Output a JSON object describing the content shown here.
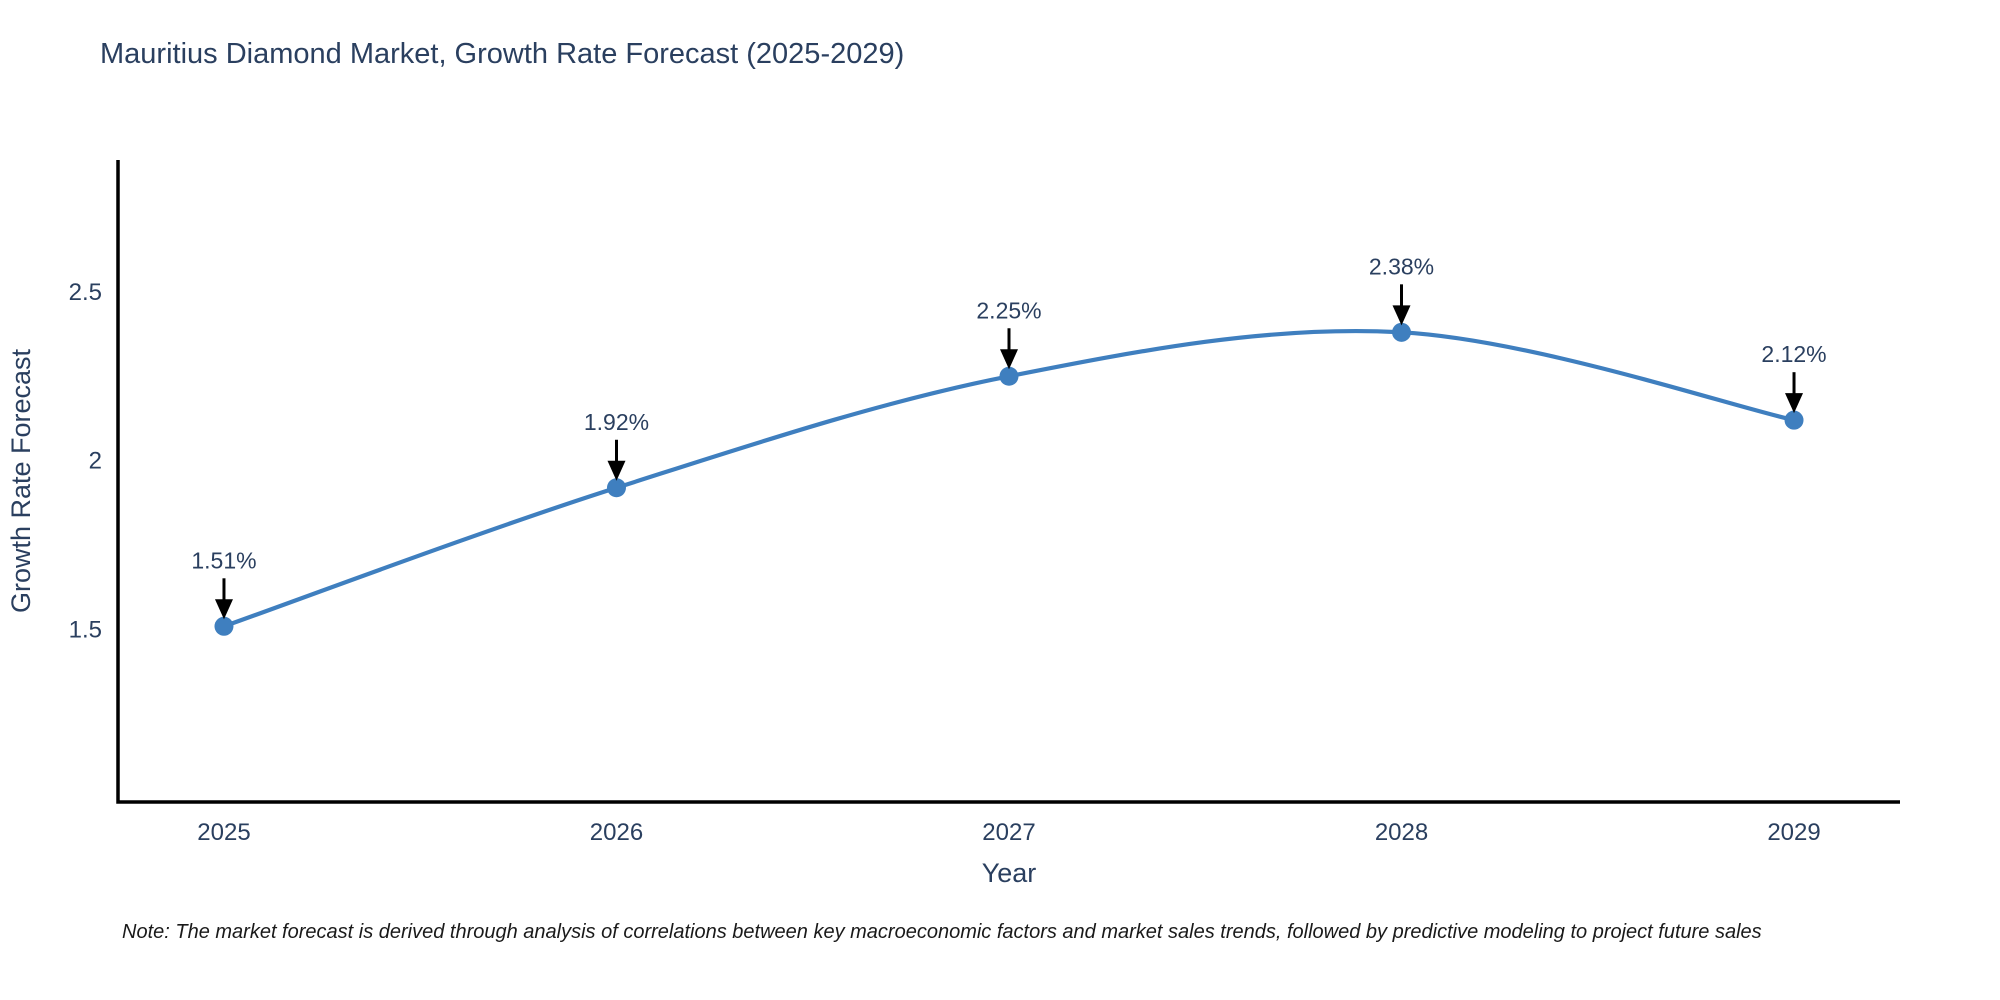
{
  "page": {
    "title": "Mauritius Diamond Market, Growth Rate Forecast (2025-2029)",
    "note": "Note: The market forecast is derived through analysis of correlations between key macroeconomic factors and market sales trends, followed by predictive modeling to project future sales"
  },
  "chart_data": {
    "type": "line",
    "title": "Mauritius Diamond Market, Growth Rate Forecast (2025-2029)",
    "xlabel": "Year",
    "ylabel": "Growth Rate Forecast",
    "x": [
      2025,
      2026,
      2027,
      2028,
      2029
    ],
    "values": [
      1.51,
      1.92,
      2.25,
      2.38,
      2.12
    ],
    "point_labels": [
      "1.51%",
      "1.92%",
      "2.25%",
      "2.38%",
      "2.12%"
    ],
    "xtick_labels": [
      "2025",
      "2026",
      "2027",
      "2028",
      "2029"
    ],
    "ytick_values": [
      1.5,
      2,
      2.5
    ],
    "ytick_labels": [
      "1.5",
      "2",
      "2.5"
    ],
    "xlim": [
      2024.73,
      2029.27
    ],
    "ylim": [
      0.99,
      2.89
    ],
    "line_shape": "spline",
    "grid": false,
    "legend_position": "none",
    "colors": {
      "line": "#3f7fbf",
      "marker": "#3f7fbf",
      "axis": "#000000",
      "text": "#2a3f5f",
      "annotation_text": "#2a3f5f",
      "annotation_arrow": "#000000"
    }
  }
}
